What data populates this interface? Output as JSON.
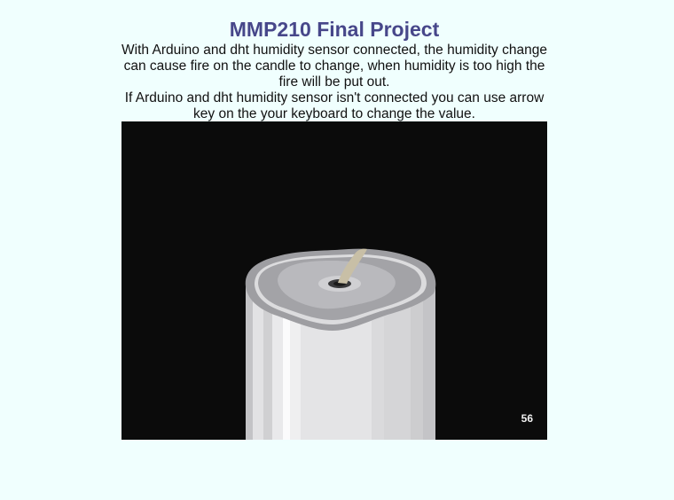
{
  "page": {
    "title": "MMP210 Final Project",
    "description_line1": "With Arduino and dht humidity sensor connected, the humidity change can cause fire on the candle to change, when humidity is too high the fire will be put out.",
    "description_line2": "If Arduino and dht humidity sensor isn't connected you can use arrow key on the your keyboard to change the value."
  },
  "sketch": {
    "humidity_value": "56",
    "background_color": "#0b0b0b",
    "candle_color": "#dcdcdc",
    "wick_color": "#c8bfa6"
  }
}
